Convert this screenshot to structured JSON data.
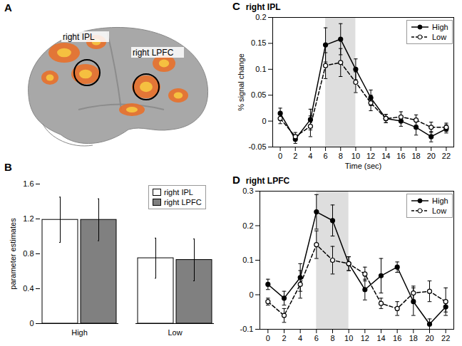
{
  "diagram": {
    "panel": "A",
    "labels": [
      "right IPL",
      "right LPFC"
    ]
  },
  "chart_data": [
    {
      "panel": "B",
      "type": "bar",
      "ylabel": "parameter estimates",
      "categories": [
        "High",
        "Low"
      ],
      "series": [
        {
          "name": "right IPL",
          "color": "#ffffff",
          "values": [
            1.19,
            0.75
          ],
          "errors": [
            0.26,
            0.23
          ]
        },
        {
          "name": "right LPFC",
          "color": "#808080",
          "values": [
            1.19,
            0.73
          ],
          "errors": [
            0.24,
            0.24
          ]
        }
      ],
      "ylim": [
        0,
        1.6
      ],
      "yticks": [
        0,
        0.4,
        0.8,
        1.2,
        1.6
      ],
      "legend": "top-right"
    },
    {
      "panel": "C",
      "type": "line",
      "title": "right IPL",
      "xlabel": "Time (sec)",
      "ylabel": "% signal change",
      "x": [
        0,
        2,
        4,
        6,
        8,
        10,
        12,
        14,
        16,
        18,
        20,
        22
      ],
      "series": [
        {
          "name": "High",
          "color": "#000000",
          "marker": "filled_circle",
          "line_style": "solid",
          "values": [
            0.015,
            -0.035,
            0.003,
            0.147,
            0.158,
            0.1,
            0.045,
            0.005,
            0.0,
            -0.012,
            -0.03,
            -0.015
          ],
          "errors": [
            0.01,
            0.008,
            0.02,
            0.033,
            0.03,
            0.02,
            0.015,
            0.008,
            0.01,
            0.015,
            0.01,
            0.008
          ]
        },
        {
          "name": "Low",
          "color": "#000000",
          "marker": "open_circle",
          "line_style": "dashed",
          "values": [
            0.005,
            -0.03,
            -0.01,
            0.107,
            0.113,
            0.075,
            0.035,
            0.005,
            0.008,
            0.002,
            -0.012,
            -0.012
          ],
          "errors": [
            0.01,
            0.008,
            0.02,
            0.025,
            0.027,
            0.02,
            0.015,
            0.008,
            0.01,
            0.01,
            0.01,
            0.008
          ]
        }
      ],
      "highlight": [
        6,
        10
      ],
      "xlim": [
        -1,
        23
      ],
      "xticks": [
        0,
        2,
        4,
        6,
        8,
        10,
        12,
        14,
        16,
        18,
        20,
        22
      ],
      "ylim": [
        -0.05,
        0.2
      ],
      "yticks": [
        -0.05,
        0,
        0.05,
        0.1,
        0.15,
        0.2
      ],
      "legend": "top-right"
    },
    {
      "panel": "D",
      "type": "line",
      "title": "right LPFC",
      "x": [
        0,
        2,
        4,
        6,
        8,
        10,
        12,
        14,
        16,
        18,
        20,
        22
      ],
      "series": [
        {
          "name": "High",
          "color": "#000000",
          "marker": "filled_circle",
          "line_style": "solid",
          "values": [
            0.03,
            -0.01,
            0.05,
            0.24,
            0.215,
            0.09,
            0.015,
            0.055,
            0.08,
            -0.02,
            -0.085,
            -0.035
          ],
          "errors": [
            0.015,
            0.02,
            0.04,
            0.05,
            0.045,
            0.02,
            0.03,
            0.05,
            0.015,
            0.04,
            0.015,
            0.015
          ]
        },
        {
          "name": "Low",
          "color": "#000000",
          "marker": "open_circle",
          "line_style": "dashed",
          "values": [
            -0.02,
            -0.06,
            0.03,
            0.145,
            0.1,
            0.09,
            0.06,
            -0.025,
            -0.04,
            0.005,
            0.01,
            -0.02
          ],
          "errors": [
            0.01,
            0.02,
            0.04,
            0.04,
            0.04,
            0.02,
            0.02,
            0.015,
            0.02,
            0.02,
            0.03,
            0.04
          ]
        }
      ],
      "highlight": [
        6,
        10
      ],
      "xlim": [
        -1,
        23
      ],
      "xticks": [
        0,
        2,
        4,
        6,
        8,
        10,
        12,
        14,
        16,
        18,
        20,
        22
      ],
      "ylim": [
        -0.1,
        0.3
      ],
      "yticks": [
        -0.1,
        0,
        0.1,
        0.2,
        0.3
      ],
      "legend": "top-right"
    }
  ]
}
